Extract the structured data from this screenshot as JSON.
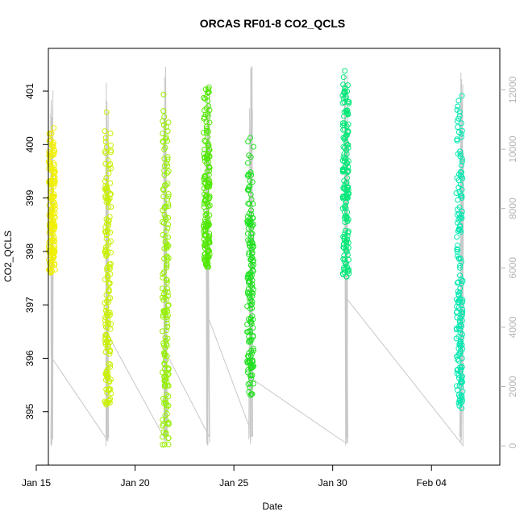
{
  "chart_data": {
    "type": "scatter",
    "title": "ORCAS RF01-8 CO2_QCLS",
    "xlabel": "Date",
    "ylabel": "CO2_QCLS",
    "x_axis": {
      "type": "date",
      "range": [
        "2016-01-15T00:00",
        "2016-02-07T11:00"
      ],
      "ticks": [
        {
          "value": "2016-01-15",
          "label": "Jan 15"
        },
        {
          "value": "2016-01-20",
          "label": "Jan 20"
        },
        {
          "value": "2016-01-25",
          "label": "Jan 25"
        },
        {
          "value": "2016-01-30",
          "label": "Jan 30"
        },
        {
          "value": "2016-02-04",
          "label": "Feb 04"
        }
      ]
    },
    "y_axis_left": {
      "range": [
        394.0,
        401.8
      ],
      "ticks": [
        395,
        396,
        397,
        398,
        399,
        400,
        401
      ],
      "tick_labels": [
        "395",
        "396",
        "397",
        "398",
        "399",
        "400",
        "401"
      ]
    },
    "y_axis_right": {
      "range": [
        -650,
        13400
      ],
      "ticks": [
        0,
        2000,
        4000,
        6000,
        8000,
        10000,
        12000
      ],
      "tick_labels": [
        "0",
        "2000",
        "4000",
        "6000",
        "8000",
        "10000",
        "12000"
      ],
      "color": "#b5b5b5"
    },
    "grid": false,
    "legend": "none",
    "series": [
      {
        "kind": "line",
        "axis": "right",
        "color": "#c8c8c8",
        "x": [
          "2016-01-15T18:00",
          "2016-01-18T14:00",
          "2016-01-21T12:30",
          "2016-01-23T16:00",
          "2016-01-25T20:00",
          "2016-01-30T16:00",
          "2016-02-05T12:00"
        ],
        "y": [
          3000,
          3800,
          3200,
          4400,
          2300,
          5000,
          4000
        ],
        "comment_free": true
      },
      {
        "kind": "points",
        "axis": "left",
        "flights": [
          {
            "x": "2016-01-15T19:00",
            "ymin": 397.6,
            "ymax": 400.6,
            "color": "#f0f000"
          },
          {
            "x": "2016-01-18T15:00",
            "ymin": 395.1,
            "ymax": 400.65,
            "color": "#c8f000"
          },
          {
            "x": "2016-01-21T13:00",
            "ymin": 394.35,
            "ymax": 400.95,
            "color": "#96f000"
          },
          {
            "x": "2016-01-23T15:00",
            "ymin": 397.7,
            "ymax": 401.2,
            "color": "#50e800"
          },
          {
            "x": "2016-01-25T20:00",
            "ymin": 395.3,
            "ymax": 400.55,
            "color": "#20e020"
          },
          {
            "x": "2016-01-30T16:00",
            "ymin": 397.5,
            "ymax": 401.5,
            "color": "#00e878"
          },
          {
            "x": "2016-02-05T10:00",
            "ymin": 395.05,
            "ymax": 401.1,
            "color": "#00e8b0"
          }
        ]
      }
    ]
  }
}
